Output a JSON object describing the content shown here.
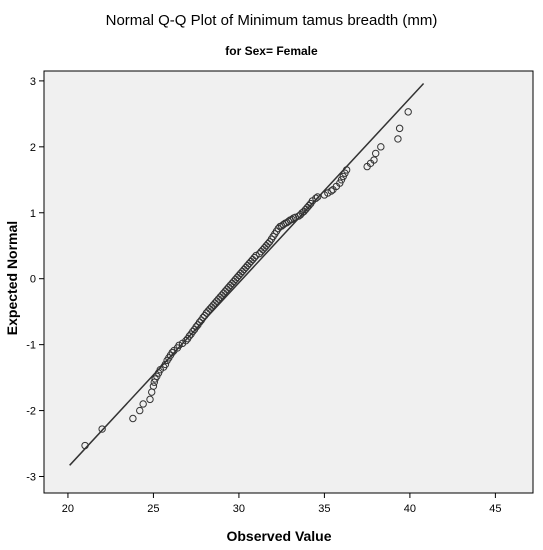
{
  "chart_data": {
    "type": "scatter",
    "title": "Normal Q-Q Plot of Minimum tamus breadth (mm)",
    "subtitle": "for Sex= Female",
    "xlabel": "Observed Value",
    "ylabel": "Expected Normal",
    "xlim": [
      18.6,
      47.2
    ],
    "ylim": [
      -3.25,
      3.15
    ],
    "xticks": [
      20,
      25,
      30,
      35,
      40,
      45
    ],
    "xtick_labels": [
      "20",
      "25",
      "30",
      "35",
      "40",
      "45"
    ],
    "yticks": [
      3,
      2,
      1,
      0,
      -1,
      -2,
      -3
    ],
    "ytick_labels": [
      "3",
      "2",
      "1",
      "0",
      "-1",
      "-2",
      "-3"
    ],
    "grid": false,
    "plot_background": "#f0f0f0",
    "reference_line": {
      "x": [
        20.1,
        40.8
      ],
      "y": [
        -2.83,
        2.96
      ]
    },
    "series": [
      {
        "marker": "open-circle",
        "color": "#333333",
        "x": [
          21.0,
          22.0,
          23.8,
          24.2,
          24.4,
          24.8,
          24.9,
          25.0,
          25.05,
          25.1,
          25.2,
          25.3,
          25.4,
          25.6,
          25.7,
          25.8,
          25.9,
          26.0,
          26.1,
          26.2,
          26.4,
          26.5,
          26.7,
          26.9,
          27.0,
          27.1,
          27.2,
          27.3,
          27.4,
          27.5,
          27.6,
          27.7,
          27.8,
          27.9,
          28.0,
          28.1,
          28.2,
          28.3,
          28.4,
          28.5,
          28.6,
          28.7,
          28.8,
          28.9,
          29.0,
          29.1,
          29.2,
          29.3,
          29.4,
          29.5,
          29.6,
          29.7,
          29.8,
          29.9,
          30.0,
          30.1,
          30.2,
          30.3,
          30.4,
          30.5,
          30.6,
          30.7,
          30.8,
          30.9,
          31.0,
          31.2,
          31.3,
          31.4,
          31.5,
          31.6,
          31.7,
          31.8,
          31.9,
          32.0,
          32.1,
          32.2,
          32.3,
          32.4,
          32.5,
          32.6,
          32.7,
          32.8,
          32.9,
          33.0,
          33.1,
          33.2,
          33.3,
          33.5,
          33.6,
          33.7,
          33.8,
          33.9,
          34.0,
          34.1,
          34.2,
          34.3,
          34.5,
          34.6,
          35.0,
          35.2,
          35.4,
          35.5,
          35.7,
          35.9,
          36.0,
          36.1,
          36.2,
          36.3,
          37.5,
          37.7,
          37.9,
          38.0,
          38.3,
          39.3,
          39.4,
          39.9
        ],
        "y": [
          -2.53,
          -2.28,
          -2.12,
          -2.0,
          -1.9,
          -1.83,
          -1.72,
          -1.63,
          -1.57,
          -1.52,
          -1.48,
          -1.43,
          -1.38,
          -1.34,
          -1.3,
          -1.24,
          -1.2,
          -1.16,
          -1.12,
          -1.09,
          -1.05,
          -1.01,
          -0.98,
          -0.94,
          -0.91,
          -0.87,
          -0.84,
          -0.8,
          -0.77,
          -0.73,
          -0.7,
          -0.66,
          -0.63,
          -0.59,
          -0.56,
          -0.52,
          -0.49,
          -0.46,
          -0.43,
          -0.4,
          -0.37,
          -0.34,
          -0.31,
          -0.28,
          -0.25,
          -0.22,
          -0.19,
          -0.16,
          -0.13,
          -0.1,
          -0.07,
          -0.04,
          -0.01,
          0.02,
          0.05,
          0.08,
          0.11,
          0.14,
          0.17,
          0.2,
          0.23,
          0.26,
          0.29,
          0.32,
          0.35,
          0.38,
          0.41,
          0.44,
          0.47,
          0.5,
          0.53,
          0.56,
          0.6,
          0.64,
          0.68,
          0.72,
          0.76,
          0.79,
          0.8,
          0.82,
          0.84,
          0.85,
          0.87,
          0.89,
          0.9,
          0.92,
          0.93,
          0.95,
          0.97,
          1.0,
          1.02,
          1.05,
          1.08,
          1.11,
          1.14,
          1.18,
          1.22,
          1.24,
          1.27,
          1.3,
          1.33,
          1.35,
          1.4,
          1.45,
          1.5,
          1.55,
          1.6,
          1.65,
          1.7,
          1.75,
          1.8,
          1.9,
          2.0,
          2.12,
          2.28,
          2.53
        ]
      }
    ]
  }
}
